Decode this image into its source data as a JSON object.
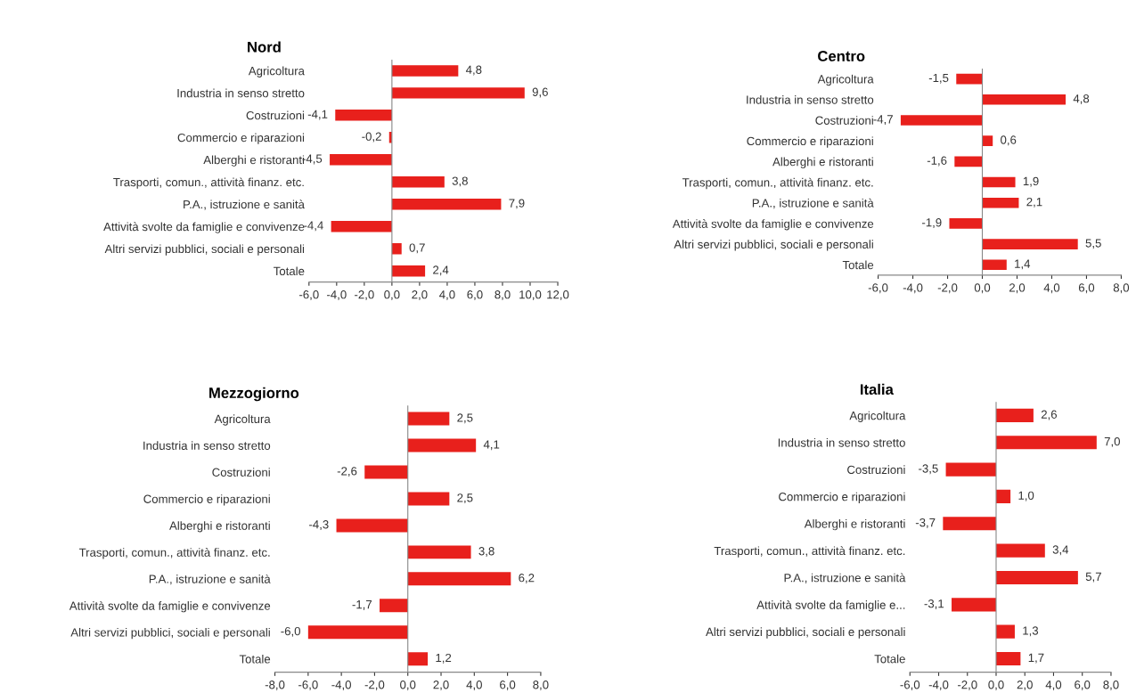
{
  "chart_data": [
    {
      "type": "bar",
      "orientation": "horizontal",
      "title": "Nord",
      "categories": [
        "Agricoltura",
        "Industria in senso stretto",
        "Costruzioni",
        "Commercio e riparazioni",
        "Alberghi e ristoranti",
        "Trasporti, comun., attività finanz. etc.",
        "P.A., istruzione e sanità",
        "Attività svolte da famiglie e convivenze",
        "Altri servizi pubblici, sociali e personali",
        "Totale"
      ],
      "values": [
        4.8,
        9.6,
        -4.1,
        -0.2,
        -4.5,
        3.8,
        7.9,
        -4.4,
        0.7,
        2.4
      ],
      "value_labels": [
        "4,8",
        "9,6",
        "-4,1",
        "-0,2",
        "-4,5",
        "3,8",
        "7,9",
        "-4,4",
        "0,7",
        "2,4"
      ],
      "color": "#e8201c",
      "xlim": [
        -6,
        12
      ],
      "xticks": [
        {
          "value": -6,
          "label": "-6,0"
        },
        {
          "value": -4,
          "label": "-4,0"
        },
        {
          "value": -2,
          "label": "-2,0"
        },
        {
          "value": 0,
          "label": "0,0"
        },
        {
          "value": 2,
          "label": "2,0"
        },
        {
          "value": 4,
          "label": "4,0"
        },
        {
          "value": 6,
          "label": "6,0"
        },
        {
          "value": 8,
          "label": "8,0"
        },
        {
          "value": 10,
          "label": "10,0"
        },
        {
          "value": 12,
          "label": "12,0"
        }
      ]
    },
    {
      "type": "bar",
      "orientation": "horizontal",
      "title": "Centro",
      "categories": [
        "Agricoltura",
        "Industria in senso stretto",
        "Costruzioni",
        "Commercio e riparazioni",
        "Alberghi e ristoranti",
        "Trasporti, comun., attività finanz. etc.",
        "P.A., istruzione e sanità",
        "Attività svolte da famiglie e convivenze",
        "Altri servizi pubblici, sociali e personali",
        "Totale"
      ],
      "values": [
        -1.5,
        4.8,
        -4.7,
        0.6,
        -1.6,
        1.9,
        2.1,
        -1.9,
        5.5,
        1.4
      ],
      "value_labels": [
        "-1,5",
        "4,8",
        "-4,7",
        "0,6",
        "-1,6",
        "1,9",
        "2,1",
        "-1,9",
        "5,5",
        "1,4"
      ],
      "color": "#e8201c",
      "xlim": [
        -6,
        8
      ],
      "xticks": [
        {
          "value": -6,
          "label": "-6,0"
        },
        {
          "value": -4,
          "label": "-4,0"
        },
        {
          "value": -2,
          "label": "-2,0"
        },
        {
          "value": 0,
          "label": "0,0"
        },
        {
          "value": 2,
          "label": "2,0"
        },
        {
          "value": 4,
          "label": "4,0"
        },
        {
          "value": 6,
          "label": "6,0"
        },
        {
          "value": 8,
          "label": "8,0"
        }
      ]
    },
    {
      "type": "bar",
      "orientation": "horizontal",
      "title": "Mezzogiorno",
      "categories": [
        "Agricoltura",
        "Industria in senso stretto",
        "Costruzioni",
        "Commercio e riparazioni",
        "Alberghi e ristoranti",
        "Trasporti, comun., attività finanz. etc.",
        "P.A., istruzione e sanità",
        "Attività svolte da famiglie e convivenze",
        "Altri servizi pubblici, sociali e personali",
        "Totale"
      ],
      "values": [
        2.5,
        4.1,
        -2.6,
        2.5,
        -4.3,
        3.8,
        6.2,
        -1.7,
        -6.0,
        1.2
      ],
      "value_labels": [
        "2,5",
        "4,1",
        "-2,6",
        "2,5",
        "-4,3",
        "3,8",
        "6,2",
        "-1,7",
        "-6,0",
        "1,2"
      ],
      "color": "#e8201c",
      "xlim": [
        -8,
        8
      ],
      "xticks": [
        {
          "value": -8,
          "label": "-8,0"
        },
        {
          "value": -6,
          "label": "-6,0"
        },
        {
          "value": -4,
          "label": "-4,0"
        },
        {
          "value": -2,
          "label": "-2,0"
        },
        {
          "value": 0,
          "label": "0,0"
        },
        {
          "value": 2,
          "label": "2,0"
        },
        {
          "value": 4,
          "label": "4,0"
        },
        {
          "value": 6,
          "label": "6,0"
        },
        {
          "value": 8,
          "label": "8,0"
        }
      ]
    },
    {
      "type": "bar",
      "orientation": "horizontal",
      "title": "Italia",
      "categories": [
        "Agricoltura",
        "Industria in senso stretto",
        "Costruzioni",
        "Commercio e riparazioni",
        "Alberghi e ristoranti",
        "Trasporti, comun., attività finanz. etc.",
        "P.A., istruzione e sanità",
        "Attività svolte da famiglie e...",
        "Altri servizi pubblici, sociali e personali",
        "Totale"
      ],
      "values": [
        2.6,
        7.0,
        -3.5,
        1.0,
        -3.7,
        3.4,
        5.7,
        -3.1,
        1.3,
        1.7
      ],
      "value_labels": [
        "2,6",
        "7,0",
        "-3,5",
        "1,0",
        "-3,7",
        "3,4",
        "5,7",
        "-3,1",
        "1,3",
        "1,7"
      ],
      "color": "#e8201c",
      "xlim": [
        -6,
        8
      ],
      "xticks": [
        {
          "value": -6,
          "label": "-6,0"
        },
        {
          "value": -4,
          "label": "-4,0"
        },
        {
          "value": -2,
          "label": "-2,0"
        },
        {
          "value": 0,
          "label": "0,0"
        },
        {
          "value": 2,
          "label": "2,0"
        },
        {
          "value": 4,
          "label": "4,0"
        },
        {
          "value": 6,
          "label": "6,0"
        },
        {
          "value": 8,
          "label": "8,0"
        }
      ]
    }
  ]
}
